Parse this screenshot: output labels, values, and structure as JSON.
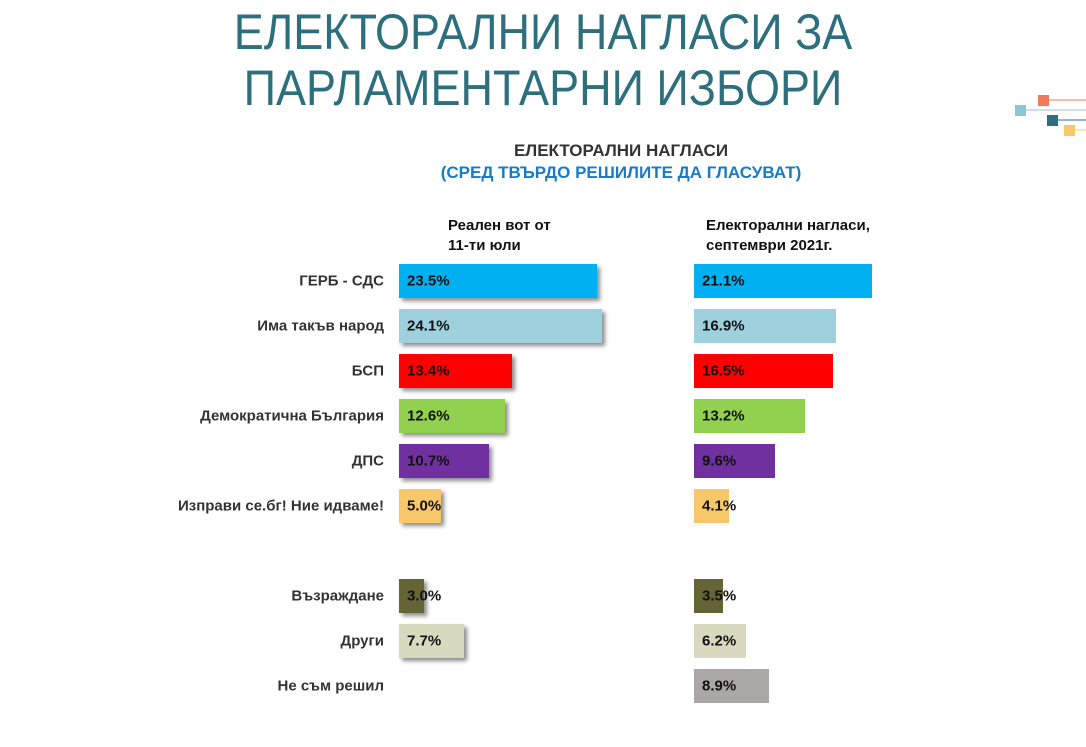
{
  "title": "ЕЛЕКТОРАЛНИ НАГЛАСИ ЗА ПАРЛАМЕНТАРНИ ИЗБОРИ",
  "chart_data": {
    "type": "bar",
    "orientation": "horizontal",
    "title": "ЕЛЕКТОРАЛНИ НАГЛАСИ",
    "subtitle": "(СРЕД ТВЪРДО РЕШИЛИТЕ ДА ГЛАСУВАТ)",
    "categories": [
      "ГЕРБ - СДС",
      "Има такъв народ",
      "БСП",
      "Демократична България",
      "ДПС",
      "Изправи се.бг! Ние идваме!",
      "Възраждане",
      "Други",
      "Не съм решил"
    ],
    "colors": [
      "#00b0f0",
      "#9fd0de",
      "#ff0000",
      "#92d050",
      "#7030a0",
      "#f7c86a",
      "#646434",
      "#d9d9bf",
      "#aba7a6"
    ],
    "series": [
      {
        "name": "Реален вот от 11-ти юли",
        "values": [
          23.5,
          24.1,
          13.4,
          12.6,
          10.7,
          5.0,
          3.0,
          7.7,
          null
        ],
        "labels": [
          "23.5%",
          "24.1%",
          "13.4%",
          "12.6%",
          "10.7%",
          "5.0%",
          "3.0%",
          "7.7%",
          ""
        ]
      },
      {
        "name": "Електорални нагласи, септември 2021г.",
        "values": [
          21.1,
          16.9,
          16.5,
          13.2,
          9.6,
          4.1,
          3.5,
          6.2,
          8.9
        ],
        "labels": [
          "21.1%",
          "16.9%",
          "16.5%",
          "13.2%",
          "9.6%",
          "4.1%",
          "3.5%",
          "6.2%",
          "8.9%"
        ]
      }
    ],
    "series_headers": [
      [
        "Реален вот от",
        "11-ти юли"
      ],
      [
        "Електорални нагласи,",
        "септември 2021г."
      ]
    ],
    "unit": "%"
  },
  "decor_colors": [
    "#f07a5a",
    "#8cc6d4",
    "#2e6f7e",
    "#f7c86a"
  ]
}
